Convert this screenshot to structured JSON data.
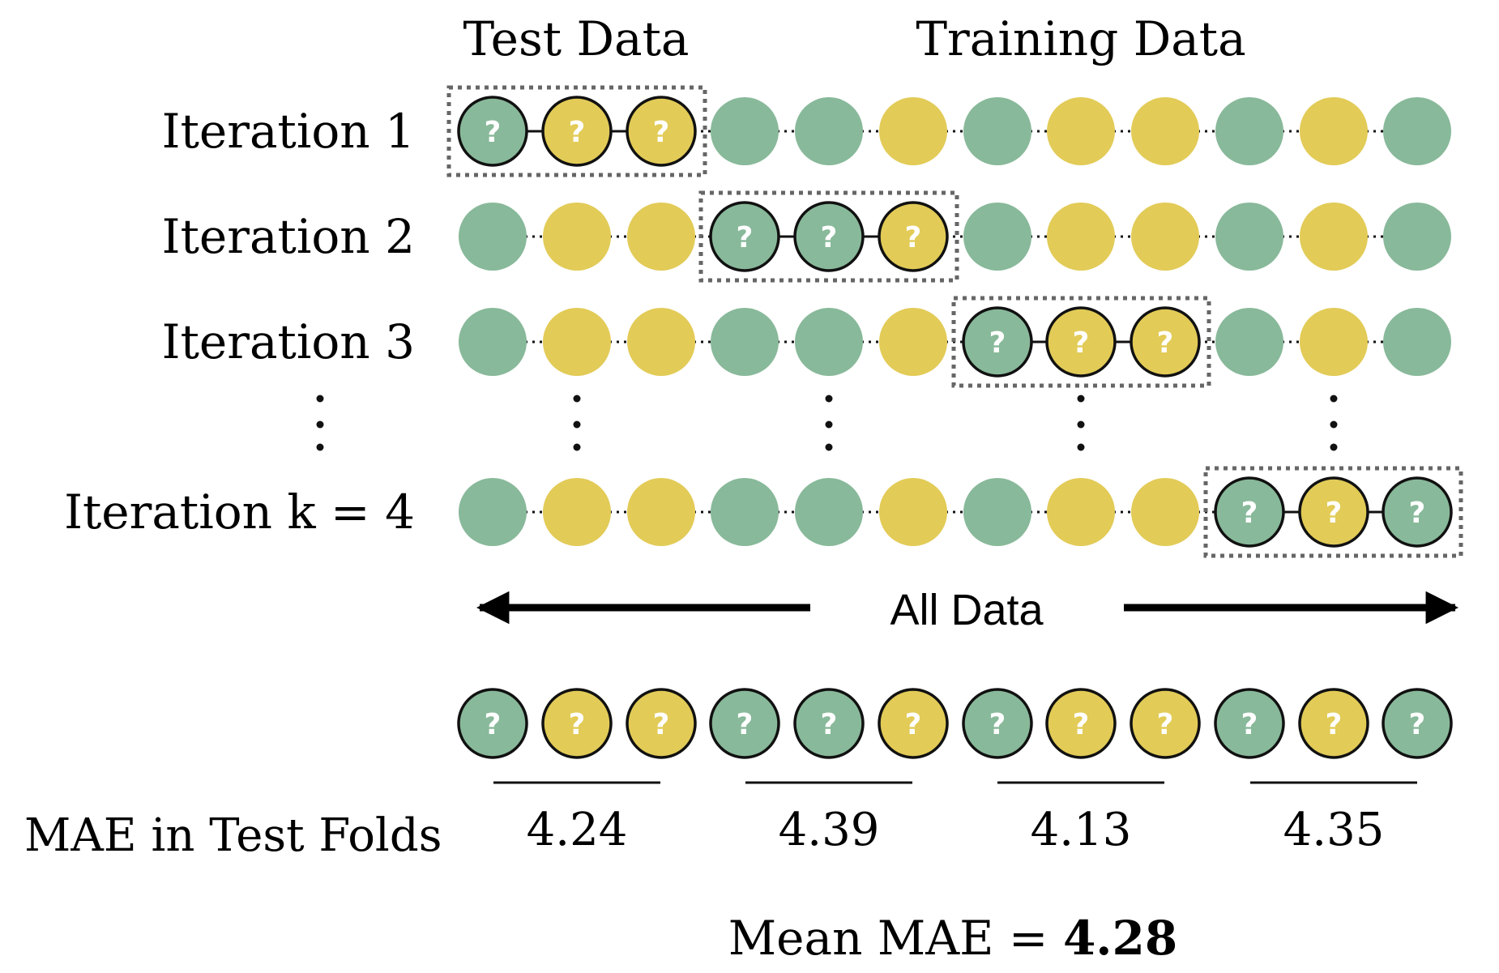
{
  "headers": {
    "test": "Test Data",
    "training": "Training Data"
  },
  "colors": {
    "green": "#88b99a",
    "yellow": "#e2cb57",
    "outline": "#111111",
    "box": "#666666"
  },
  "sample_colors": [
    "green",
    "yellow",
    "yellow",
    "green",
    "green",
    "yellow",
    "green",
    "yellow",
    "yellow",
    "green",
    "yellow",
    "green"
  ],
  "iterations": [
    {
      "label": "Iteration 1",
      "test_fold": 0
    },
    {
      "label": "Iteration 2",
      "test_fold": 1
    },
    {
      "label": "Iteration 3",
      "test_fold": 2
    },
    {
      "label": "Iteration k = 4",
      "test_fold": 3
    }
  ],
  "ellipsis": "⋮",
  "question_mark": "?",
  "all_data_label": "All Data",
  "mae_label": "MAE in Test Folds",
  "fold_mae": [
    "4.24",
    "4.39",
    "4.13",
    "4.35"
  ],
  "mean": {
    "prefix": "Mean MAE = ",
    "value": "4.28"
  }
}
